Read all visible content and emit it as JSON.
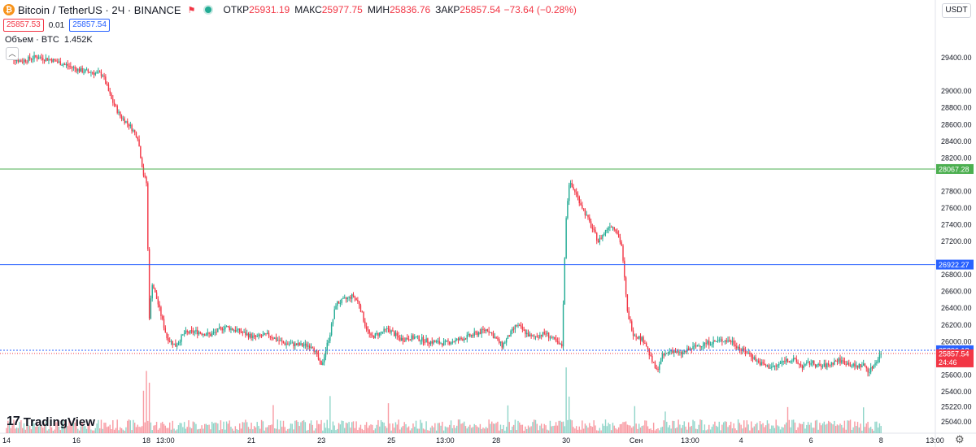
{
  "legend": {
    "symbol": "Bitcoin / TetherUS · 2Ч · BINANCE",
    "open_label": "ОТКР",
    "open": "25931.19",
    "high_label": "МАКС",
    "high": "25977.75",
    "low_label": "МИН",
    "low": "25836.76",
    "close_label": "ЗАКР",
    "close": "25857.54",
    "change": "−73.64 (−0.28%)"
  },
  "order": {
    "sell": "25857.53",
    "spread": "0.01",
    "buy": "25857.54"
  },
  "volume_legend": {
    "label": "Объем · BTC",
    "value": "1.452K"
  },
  "currency_button": "USDT",
  "branding": "TradingView",
  "colors": {
    "up": "#22ab94",
    "down": "#f23645",
    "green_line": "#4caf50",
    "blue_line": "#2962ff"
  },
  "price_lines": [
    {
      "value": "28067.28",
      "color": "#4caf50",
      "kind": "solid"
    },
    {
      "value": "26922.27",
      "color": "#2962ff",
      "kind": "solid"
    },
    {
      "value": "25896.18",
      "color": "#2962ff",
      "kind": "dotted"
    }
  ],
  "last_price": {
    "value": "25857.54",
    "countdown": "24:46"
  },
  "chart_data": {
    "type": "candlestick",
    "ylim": [
      25000,
      29800
    ],
    "y_ticks": [
      "29400.00",
      "29000.00",
      "28800.00",
      "28600.00",
      "28400.00",
      "28200.00",
      "28000.00",
      "27800.00",
      "27600.00",
      "27400.00",
      "27200.00",
      "27000.00",
      "26800.00",
      "26600.00",
      "26400.00",
      "26200.00",
      "26000.00",
      "25800.00",
      "25600.00",
      "25400.00",
      "25220.00",
      "25040.00"
    ],
    "x_ticks": [
      {
        "label": "14",
        "t": 0
      },
      {
        "label": "16",
        "t": 48
      },
      {
        "label": "18",
        "t": 96
      },
      {
        "label": "13:00",
        "t": 109
      },
      {
        "label": "21",
        "t": 168
      },
      {
        "label": "23",
        "t": 216
      },
      {
        "label": "25",
        "t": 264
      },
      {
        "label": "13:00",
        "t": 301
      },
      {
        "label": "28",
        "t": 336
      },
      {
        "label": "30",
        "t": 384
      },
      {
        "label": "Сен",
        "t": 432
      },
      {
        "label": "13:00",
        "t": 469
      },
      {
        "label": "4",
        "t": 504
      },
      {
        "label": "6",
        "t": 552
      },
      {
        "label": "8",
        "t": 600
      },
      {
        "label": "13:00",
        "t": 637
      }
    ],
    "anchors": [
      [
        0,
        29420
      ],
      [
        10,
        29360
      ],
      [
        20,
        29410
      ],
      [
        30,
        29380
      ],
      [
        40,
        29320
      ],
      [
        50,
        29250
      ],
      [
        60,
        29220
      ],
      [
        66,
        29200
      ],
      [
        72,
        28900
      ],
      [
        78,
        28700
      ],
      [
        84,
        28600
      ],
      [
        90,
        28450
      ],
      [
        94,
        28000
      ],
      [
        96,
        27900
      ],
      [
        98,
        26300
      ],
      [
        100,
        26700
      ],
      [
        104,
        26450
      ],
      [
        110,
        26050
      ],
      [
        116,
        25950
      ],
      [
        122,
        26100
      ],
      [
        130,
        26120
      ],
      [
        140,
        26080
      ],
      [
        150,
        26180
      ],
      [
        160,
        26120
      ],
      [
        170,
        26050
      ],
      [
        180,
        26080
      ],
      [
        190,
        25980
      ],
      [
        200,
        25960
      ],
      [
        210,
        25950
      ],
      [
        216,
        25700
      ],
      [
        222,
        26100
      ],
      [
        226,
        26450
      ],
      [
        232,
        26500
      ],
      [
        238,
        26550
      ],
      [
        242,
        26450
      ],
      [
        246,
        26200
      ],
      [
        250,
        26050
      ],
      [
        256,
        26100
      ],
      [
        262,
        26150
      ],
      [
        270,
        26030
      ],
      [
        280,
        26050
      ],
      [
        290,
        26000
      ],
      [
        300,
        25980
      ],
      [
        310,
        26020
      ],
      [
        320,
        26080
      ],
      [
        330,
        26150
      ],
      [
        340,
        25950
      ],
      [
        350,
        26200
      ],
      [
        360,
        26050
      ],
      [
        370,
        26100
      ],
      [
        380,
        25950
      ],
      [
        381,
        25950
      ],
      [
        384,
        27500
      ],
      [
        386,
        27900
      ],
      [
        390,
        27800
      ],
      [
        394,
        27650
      ],
      [
        398,
        27500
      ],
      [
        402,
        27350
      ],
      [
        406,
        27200
      ],
      [
        410,
        27300
      ],
      [
        414,
        27400
      ],
      [
        418,
        27350
      ],
      [
        422,
        27150
      ],
      [
        426,
        26350
      ],
      [
        430,
        26100
      ],
      [
        434,
        26050
      ],
      [
        438,
        26000
      ],
      [
        442,
        25800
      ],
      [
        446,
        25650
      ],
      [
        450,
        25820
      ],
      [
        456,
        25900
      ],
      [
        462,
        25850
      ],
      [
        468,
        25900
      ],
      [
        474,
        25950
      ],
      [
        480,
        25980
      ],
      [
        486,
        26000
      ],
      [
        492,
        26020
      ],
      [
        498,
        26000
      ],
      [
        504,
        25900
      ],
      [
        510,
        25850
      ],
      [
        516,
        25750
      ],
      [
        522,
        25700
      ],
      [
        528,
        25700
      ],
      [
        534,
        25780
      ],
      [
        540,
        25780
      ],
      [
        546,
        25700
      ],
      [
        552,
        25750
      ],
      [
        558,
        25700
      ],
      [
        564,
        25720
      ],
      [
        570,
        25780
      ],
      [
        576,
        25750
      ],
      [
        582,
        25700
      ],
      [
        588,
        25720
      ],
      [
        592,
        25640
      ],
      [
        596,
        25750
      ],
      [
        600,
        25858
      ]
    ],
    "volume_spikes": [
      [
        94,
        6
      ],
      [
        96,
        10
      ],
      [
        98,
        8
      ],
      [
        183,
        4
      ],
      [
        222,
        5
      ],
      [
        262,
        3
      ],
      [
        344,
        3
      ],
      [
        384,
        11
      ],
      [
        386,
        6
      ],
      [
        431,
        4
      ],
      [
        452,
        3
      ],
      [
        536,
        3
      ],
      [
        588,
        4
      ]
    ],
    "volume_note": "per-candle base volume is pseudo-random"
  }
}
